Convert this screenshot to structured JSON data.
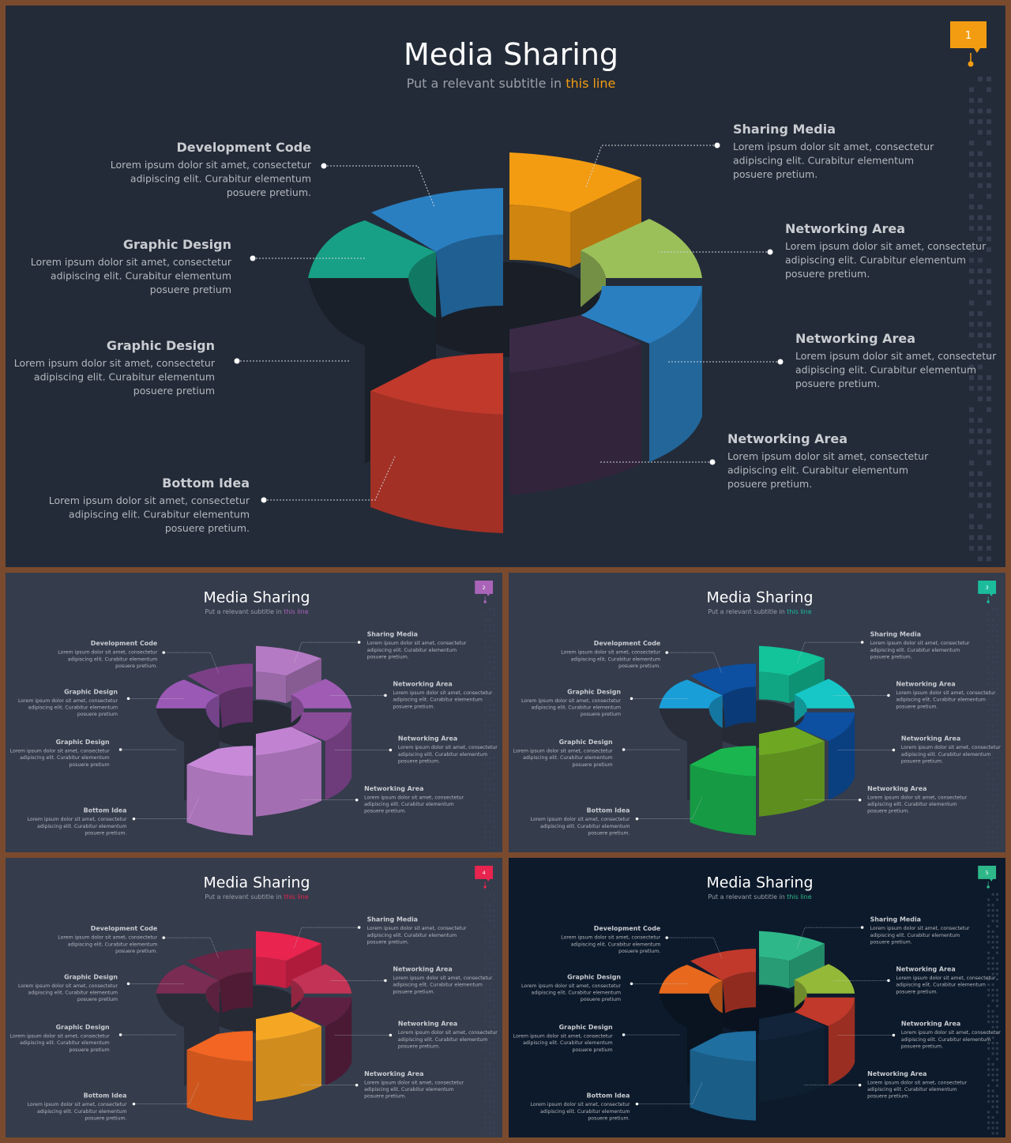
{
  "title": "Media Sharing",
  "subtitle_prefix": "Put a relevant subtitle in ",
  "subtitle_highlight": "this line",
  "body_text_line1": "Lorem ipsum dolor sit amet, consectetur",
  "body_text_line2": "adipiscing elit. Curabitur elementum",
  "body_text_line3": "posuere pretium.",
  "body_text_line3_alt": "posuere pretium",
  "labels": {
    "development_code": "Development Code",
    "graphic_design": "Graphic Design",
    "bottom_idea": "Bottom Idea",
    "sharing_media": "Sharing Media",
    "networking_area": "Networking Area"
  },
  "slides": [
    {
      "number": "1",
      "background": "#232b38",
      "accent": "#f39c12",
      "segments": {
        "blue_top": "#2a7fc1",
        "green_top": "#17a085",
        "orange_top": "#f39c12",
        "lime_top": "#9bc05a",
        "right_blue": "#2a7fc1",
        "purple": "#3b2a45",
        "red": "#c0392b"
      }
    },
    {
      "number": "2",
      "background": "#353c4c",
      "accent": "#a964b8",
      "segments": {
        "blue_top": "#7b3f86",
        "green_top": "#9b59b6",
        "orange_top": "#b47ac4",
        "lime_top": "#a05cb4",
        "right_blue": "#8a4b98",
        "purple": "#c183d1",
        "red": "#c889d8"
      }
    },
    {
      "number": "3",
      "background": "#353c4c",
      "accent": "#1abc9c",
      "segments": {
        "blue_top": "#0d4fa0",
        "green_top": "#1a9ed8",
        "orange_top": "#13c39a",
        "lime_top": "#17c7c7",
        "right_blue": "#0d4fa0",
        "purple": "#6ea823",
        "red": "#1ab54f"
      }
    },
    {
      "number": "4",
      "background": "#353c4c",
      "accent": "#e8244f",
      "segments": {
        "blue_top": "#6a2445",
        "green_top": "#7a2c52",
        "orange_top": "#e8244f",
        "lime_top": "#c23355",
        "right_blue": "#5d2042",
        "purple": "#f5a623",
        "red": "#f26522"
      }
    },
    {
      "number": "5",
      "background": "#0d1a2b",
      "accent": "#2eb88a",
      "segments": {
        "blue_top": "#c0392b",
        "green_top": "#e8691d",
        "orange_top": "#2eb88a",
        "lime_top": "#94b939",
        "right_blue": "#c0392b",
        "purple": "#11243a",
        "red": "#1f6fa0"
      }
    }
  ]
}
